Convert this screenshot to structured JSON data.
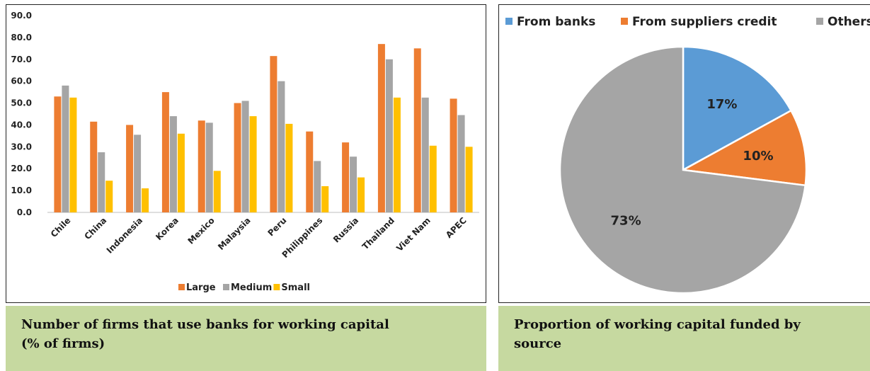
{
  "chart_data": [
    {
      "type": "bar",
      "categories": [
        "Chile",
        "China",
        "Indonesia",
        "Korea",
        "Mexico",
        "Malaysia",
        "Peru",
        "Philippines",
        "Russia",
        "Thailand",
        "Viet Nam",
        "APEC"
      ],
      "series": [
        {
          "name": "Large",
          "color": "#ed7d31",
          "values": [
            53.0,
            41.5,
            40.0,
            55.0,
            42.0,
            50.0,
            71.5,
            37.0,
            32.0,
            77.0,
            75.0,
            52.0
          ]
        },
        {
          "name": "Medium",
          "color": "#a5a5a5",
          "values": [
            58.0,
            27.5,
            35.5,
            44.0,
            41.0,
            51.0,
            60.0,
            23.5,
            25.5,
            70.0,
            52.5,
            44.5
          ]
        },
        {
          "name": "Small",
          "color": "#ffc000",
          "values": [
            52.5,
            14.5,
            11.0,
            36.0,
            19.0,
            44.0,
            40.5,
            12.0,
            16.0,
            52.5,
            30.5,
            30.0
          ]
        }
      ],
      "ylim": [
        0,
        90
      ],
      "yticks": [
        "0.0",
        "10.0",
        "20.0",
        "30.0",
        "40.0",
        "50.0",
        "60.0",
        "70.0",
        "80.0",
        "90.0"
      ],
      "legend_position": "bottom",
      "grid": false
    },
    {
      "type": "pie",
      "slices": [
        {
          "name": "From banks",
          "value": 17,
          "label": "17%",
          "color": "#5b9bd5"
        },
        {
          "name": "From suppliers credit",
          "value": 10,
          "label": "10%",
          "color": "#ed7d31"
        },
        {
          "name": "Others",
          "value": 73,
          "label": "73%",
          "color": "#a5a5a5"
        }
      ],
      "legend_position": "top"
    }
  ],
  "captions": {
    "bar_line1": "Number of firms that use banks for working capital",
    "bar_line2": "(% of firms)",
    "pie_line1": "Proportion of working capital funded by",
    "pie_line2": "source"
  }
}
